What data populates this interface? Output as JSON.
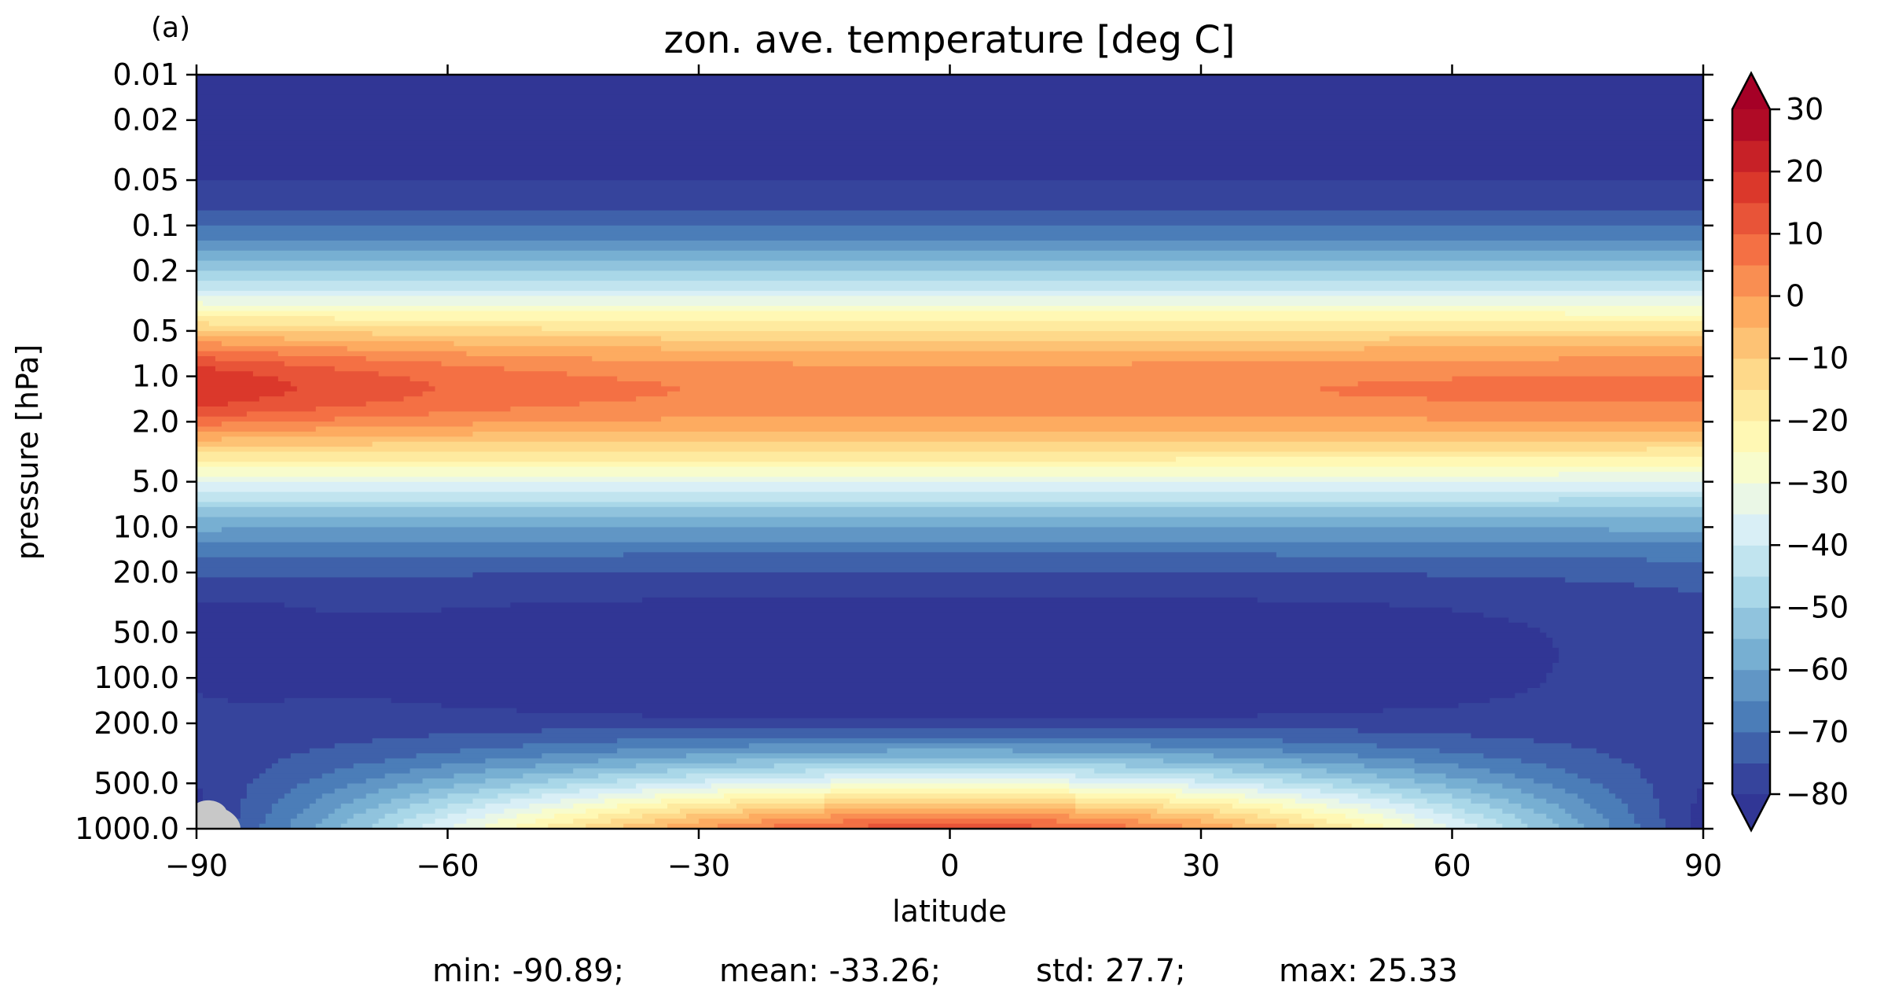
{
  "panel_label": "(a)",
  "chart_data": {
    "type": "heatmap",
    "subtype": "filled-contour",
    "title": "zon. ave. temperature [deg C]",
    "xlabel": "latitude",
    "ylabel": "pressure [hPa]",
    "xlim": [
      -90,
      90
    ],
    "x_ticks": [
      "−90",
      "−60",
      "−30",
      "0",
      "30",
      "60",
      "90"
    ],
    "x_tick_values": [
      -90,
      -60,
      -30,
      0,
      30,
      60,
      90
    ],
    "y_scale": "log",
    "y_inverted": true,
    "ylim": [
      1000.0,
      0.01
    ],
    "y_ticks": [
      "0.01",
      "0.02",
      "0.05",
      "0.1",
      "0.2",
      "0.5",
      "1.0",
      "2.0",
      "5.0",
      "10.0",
      "20.0",
      "50.0",
      "100.0",
      "200.0",
      "500.0",
      "1000.0"
    ],
    "y_tick_values": [
      0.01,
      0.02,
      0.05,
      0.1,
      0.2,
      0.5,
      1.0,
      2.0,
      5.0,
      10.0,
      20.0,
      50.0,
      100.0,
      200.0,
      500.0,
      1000.0
    ],
    "colorbar": {
      "colormap": "RdYlBu_r",
      "range": [
        -80,
        30
      ],
      "level_step": 5,
      "extend": "both",
      "ticks": [
        "30",
        "20",
        "10",
        "0",
        "−10",
        "−20",
        "−30",
        "−40",
        "−50",
        "−60",
        "−70",
        "−80"
      ],
      "tick_values": [
        30,
        20,
        10,
        0,
        -10,
        -20,
        -30,
        -40,
        -50,
        -60,
        -70,
        -80
      ]
    },
    "missing_color": "#c8c8c8"
  },
  "stats": {
    "min": "min: -90.89;",
    "mean": "mean: -33.26;",
    "std": "std: 27.7;",
    "max": "max: 25.33"
  }
}
